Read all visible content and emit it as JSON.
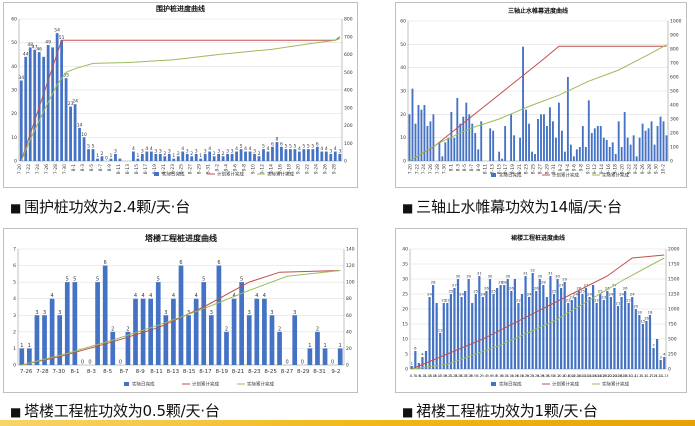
{
  "chart_data": [
    {
      "id": "c1",
      "type": "bar",
      "title": "围护桩进度曲线",
      "caption": "围护桩功效为2.4颗/天·台",
      "ylim_left": [
        0,
        60
      ],
      "yticks_left": [
        0,
        10,
        20,
        30,
        40,
        50,
        60
      ],
      "ylim_right": [
        0,
        800
      ],
      "yticks_right": [
        0,
        100,
        200,
        300,
        400,
        500,
        600,
        700,
        800
      ],
      "categories": [
        "7-20",
        "",
        "7-22",
        "",
        "7-24",
        "",
        "7-26",
        "",
        "7-28",
        "",
        "7-30",
        "",
        "8-1",
        "",
        "8-3",
        "",
        "8-5",
        "",
        "8-7",
        "",
        "8-9",
        "",
        "8-11",
        "",
        "8-13",
        "",
        "8-15",
        "",
        "8-17",
        "",
        "8-19",
        "",
        "8-21",
        "",
        "8-23",
        "",
        "8-25",
        "",
        "8-27",
        "",
        "8-29",
        "",
        "8-31",
        "",
        "9-2",
        "",
        "9-4",
        "",
        "9-6",
        "",
        "9-8",
        "",
        "9-10",
        "",
        "9-12",
        "",
        "9-14",
        "",
        "9-16",
        "",
        "9-18",
        "",
        "9-20",
        "",
        "9-22",
        "",
        "9-24",
        "",
        "9-26",
        "",
        "9-28",
        ""
      ],
      "bars": [
        34,
        44,
        48,
        47,
        46,
        44,
        49,
        48,
        54,
        51,
        35,
        23,
        24,
        14,
        10,
        5,
        5,
        1,
        2,
        0,
        1,
        3,
        1,
        0,
        0,
        4,
        1,
        3,
        4,
        4,
        3,
        3,
        2,
        3,
        1,
        2,
        4,
        3,
        2,
        3,
        1,
        3,
        4,
        2,
        3,
        2,
        3,
        3,
        4,
        5,
        4,
        4,
        3,
        2,
        5,
        4,
        6,
        8,
        6,
        5,
        5,
        5,
        4,
        5,
        5,
        5,
        6,
        4,
        4,
        3,
        4,
        3
      ],
      "bar_labels": [
        34,
        44,
        48,
        47,
        46,
        "",
        49,
        "",
        54,
        51,
        35,
        23,
        24,
        14,
        10,
        5,
        5,
        1,
        2,
        0,
        1,
        3,
        "",
        "",
        "",
        4,
        1,
        3,
        4,
        4,
        3,
        3,
        2,
        3,
        1,
        2,
        4,
        3,
        2,
        3,
        1,
        3,
        4,
        2,
        3,
        2,
        3,
        3,
        4,
        5,
        4,
        4,
        3,
        2,
        5,
        4,
        6,
        8,
        6,
        5,
        5,
        5,
        4,
        5,
        5,
        5,
        6,
        4,
        4,
        3,
        4,
        3
      ],
      "plan_line": [
        [
          0,
          0
        ],
        [
          9,
          680
        ],
        [
          70,
          680
        ],
        [
          71,
          700
        ]
      ],
      "actual_line": [
        [
          0,
          0
        ],
        [
          2,
          120
        ],
        [
          5,
          280
        ],
        [
          8,
          430
        ],
        [
          10,
          500
        ],
        [
          12,
          520
        ],
        [
          16,
          550
        ],
        [
          24,
          555
        ],
        [
          34,
          570
        ],
        [
          44,
          600
        ],
        [
          56,
          630
        ],
        [
          64,
          660
        ],
        [
          70,
          680
        ],
        [
          71,
          690
        ]
      ],
      "legend": [
        "实际日完成",
        "计划累计完成",
        "实际累计完成"
      ],
      "colors": {
        "bar": "#4472c4",
        "plan": "#c0504d",
        "actual": "#9bbb59"
      }
    },
    {
      "id": "c2",
      "type": "bar",
      "title": "三轴止水帷幕进度曲线",
      "caption": "三轴止水帷幕功效为14幅/天·台",
      "ylim_left": [
        0,
        60
      ],
      "yticks_left": [
        0,
        10,
        20,
        30,
        40,
        50,
        60
      ],
      "ylim_right": [
        0,
        1000
      ],
      "yticks_right": [
        0,
        100,
        200,
        300,
        400,
        500,
        600,
        700,
        800,
        900,
        1000
      ],
      "categories": [
        "7-20",
        "7-22",
        "7-24",
        "7-26",
        "7-28",
        "7-30",
        "8-1",
        "8-3",
        "8-5",
        "8-7",
        "8-9",
        "8-11",
        "8-13",
        "8-15",
        "8-17",
        "8-19",
        "8-21",
        "8-23",
        "8-25",
        "8-27",
        "8-29",
        "8-31",
        "9-2",
        "9-4",
        "9-6",
        "9-8",
        "9-10",
        "9-12",
        "9-14",
        "9-16",
        "9-18",
        "9-20",
        "9-22",
        "9-24",
        "9-26",
        "9-28",
        "9-30",
        "10-2"
      ],
      "bars": [
        20,
        31,
        16,
        24,
        22,
        24,
        15,
        17,
        20,
        0,
        8,
        2,
        8,
        10,
        21,
        10,
        27,
        16,
        19,
        25,
        20,
        16,
        12,
        5,
        17,
        0,
        0,
        14,
        13,
        0,
        4,
        1,
        15,
        0,
        20,
        11,
        0,
        10,
        49,
        22,
        16,
        4,
        3,
        18,
        20,
        20,
        15,
        23,
        17,
        10,
        25,
        13,
        4,
        36,
        7,
        2,
        5,
        6,
        15,
        6,
        26,
        12,
        14,
        15,
        15,
        10,
        9,
        6,
        8,
        3,
        17,
        6,
        21,
        10,
        7,
        11,
        2,
        10,
        16,
        13,
        14,
        17,
        7,
        15,
        19,
        17,
        11
      ],
      "plan_line": [
        [
          0,
          0
        ],
        [
          8,
          100
        ],
        [
          45,
          730
        ],
        [
          50,
          820
        ],
        [
          86,
          820
        ]
      ],
      "actual_line": [
        [
          0,
          0
        ],
        [
          10,
          130
        ],
        [
          20,
          230
        ],
        [
          30,
          300
        ],
        [
          40,
          390
        ],
        [
          50,
          470
        ],
        [
          60,
          570
        ],
        [
          70,
          650
        ],
        [
          80,
          760
        ],
        [
          86,
          830
        ]
      ],
      "legend": [
        "实际日完成",
        "计划累计完成",
        "实际累计完成"
      ],
      "colors": {
        "bar": "#4472c4",
        "plan": "#c0504d",
        "actual": "#9bbb59"
      }
    },
    {
      "id": "c3",
      "type": "bar",
      "title": "塔楼工程桩进度曲线",
      "caption": "塔楼工程桩功效为0.5颗/天·台",
      "ylim_left": [
        0,
        7
      ],
      "yticks_left": [
        0,
        1,
        2,
        3,
        4,
        5,
        6,
        7
      ],
      "ylim_right": [
        0,
        140
      ],
      "yticks_right": [
        0,
        20,
        40,
        60,
        80,
        100,
        120,
        140
      ],
      "categories": [
        "7-26",
        "7-28",
        "7-30",
        "8-1",
        "8-3",
        "8-5",
        "8-7",
        "8-9",
        "8-11",
        "8-13",
        "8-15",
        "8-17",
        "8-19",
        "8-21",
        "8-23",
        "8-25",
        "8-27",
        "8-29",
        "8-31",
        "9-2"
      ],
      "bars": [
        1,
        1,
        3,
        3,
        4,
        3,
        5,
        5,
        0,
        0,
        5,
        6,
        2,
        0,
        2,
        4,
        4,
        4,
        5,
        3,
        4,
        6,
        3,
        4,
        5,
        3,
        6,
        2,
        4,
        5,
        3,
        4,
        4,
        3,
        2,
        0,
        3,
        0,
        1,
        2,
        1,
        0,
        1
      ],
      "bar_labels": [
        1,
        1,
        3,
        3,
        4,
        3,
        5,
        5,
        0,
        0,
        5,
        6,
        2,
        0,
        2,
        4,
        4,
        4,
        5,
        3,
        4,
        6,
        3,
        4,
        5,
        3,
        6,
        2,
        4,
        5,
        3,
        4,
        4,
        3,
        2,
        0,
        3,
        0,
        1,
        2,
        1,
        0,
        1
      ],
      "plan_line": [
        [
          0,
          0
        ],
        [
          5,
          10
        ],
        [
          12,
          28
        ],
        [
          18,
          45
        ],
        [
          24,
          70
        ],
        [
          30,
          100
        ],
        [
          34,
          112
        ],
        [
          42,
          114
        ]
      ],
      "actual_line": [
        [
          0,
          0
        ],
        [
          6,
          14
        ],
        [
          12,
          30
        ],
        [
          18,
          48
        ],
        [
          24,
          68
        ],
        [
          30,
          90
        ],
        [
          35,
          107
        ],
        [
          42,
          114
        ]
      ],
      "legend": [
        "实际日完成",
        "计划累计完成",
        "实际累计完成"
      ],
      "colors": {
        "bar": "#4472c4",
        "plan": "#c0504d",
        "actual": "#9bbb59"
      }
    },
    {
      "id": "c4",
      "type": "bar",
      "title": "裙楼工程桩进度曲线",
      "caption": "裙楼工程桩功效为1颗/天·台",
      "ylim_left": [
        0,
        40
      ],
      "yticks_left": [
        0,
        5,
        10,
        15,
        20,
        25,
        30,
        35,
        40
      ],
      "ylim_right": [
        0,
        2000
      ],
      "yticks_right": [
        0,
        250,
        500,
        750,
        1000,
        1250,
        1500,
        1750,
        2000
      ],
      "categories": [
        "8-7",
        "8-9",
        "8-11",
        "8-13",
        "8-15",
        "8-17",
        "8-19",
        "8-21",
        "8-23",
        "8-25",
        "8-27",
        "8-29",
        "8-31",
        "9-2",
        "9-4",
        "9-6",
        "9-8",
        "9-10",
        "9-12",
        "9-14",
        "9-16",
        "9-18",
        "9-20",
        "9-22",
        "9-24",
        "9-26",
        "9-28",
        "9-30",
        "10-2",
        "10-4",
        "10-6",
        "10-8",
        "10-10",
        "10-12",
        "10-14",
        "10-16",
        "10-18",
        "10-20",
        "10-22",
        "10-24",
        "10-26",
        "10-28",
        "10-30",
        "11-1",
        "11-3",
        "11-5",
        "11-7",
        "11-9",
        "11-11",
        "11-13"
      ],
      "bars": [
        1,
        6,
        2,
        4,
        6,
        24,
        28,
        22,
        12,
        22,
        22,
        25,
        27,
        30,
        24,
        26,
        30,
        22,
        25,
        31,
        24,
        26,
        30,
        25,
        27,
        28,
        28,
        30,
        26,
        30,
        22,
        25,
        31,
        24,
        32,
        26,
        30,
        28,
        24,
        31,
        25,
        30,
        27,
        29,
        22,
        23,
        24,
        26,
        25,
        27,
        24,
        28,
        22,
        25,
        23,
        26,
        24,
        27,
        21,
        24,
        26,
        22,
        24,
        20,
        18,
        15,
        16,
        18,
        7,
        10,
        3,
        4
      ],
      "bar_labels": [
        1,
        6,
        "",
        4,
        "",
        24,
        28,
        "",
        12,
        22,
        22,
        25,
        27,
        30,
        24,
        "",
        30,
        "",
        25,
        31,
        24,
        26,
        30,
        25,
        "",
        28,
        28,
        30,
        26,
        "",
        22,
        "",
        31,
        24,
        32,
        26,
        30,
        28,
        "",
        31,
        25,
        30,
        27,
        29,
        22,
        23,
        24,
        26,
        25,
        27,
        24,
        "",
        22,
        25,
        23,
        26,
        24,
        27,
        21,
        24,
        26,
        22,
        24,
        20,
        18,
        15,
        16,
        18,
        7,
        "",
        3,
        4
      ],
      "plan_line": [
        [
          0,
          0
        ],
        [
          20,
          500
        ],
        [
          40,
          1100
        ],
        [
          55,
          1550
        ],
        [
          62,
          1850
        ],
        [
          71,
          1900
        ]
      ],
      "actual_line": [
        [
          0,
          0
        ],
        [
          10,
          80
        ],
        [
          25,
          400
        ],
        [
          40,
          800
        ],
        [
          50,
          1150
        ],
        [
          60,
          1500
        ],
        [
          71,
          1850
        ]
      ],
      "legend": [
        "实际日完成",
        "计划累计完成",
        "实际累计完成"
      ],
      "colors": {
        "bar": "#4472c4",
        "plan": "#c0504d",
        "actual": "#9bbb59"
      }
    }
  ]
}
